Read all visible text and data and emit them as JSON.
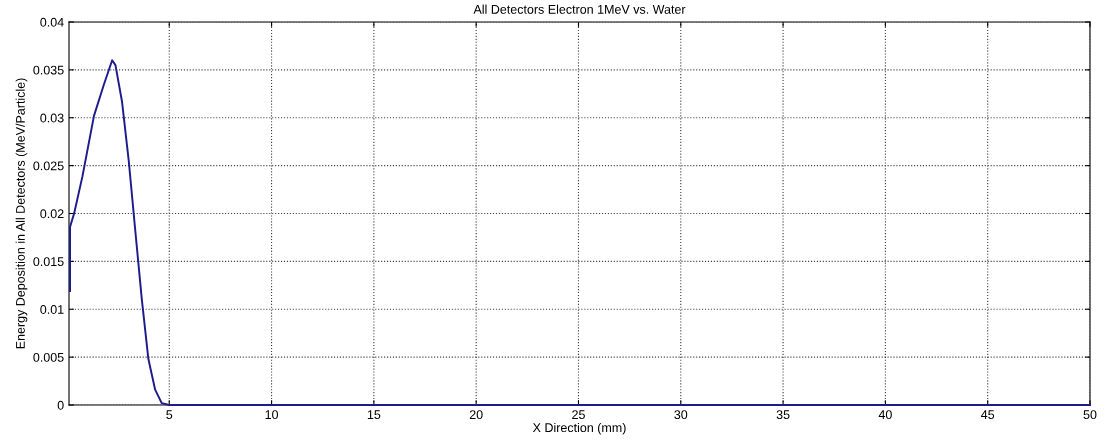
{
  "chart_data": {
    "type": "line",
    "title": "All Detectors Electron 1MeV vs. Water",
    "xlabel": "X Direction (mm)",
    "ylabel": "Energy Deposition in All Detectors (MeV/Particle)",
    "series": [
      {
        "color": "#1c1c8c",
        "x": [
          0.15,
          0.15,
          0.35,
          0.76,
          1.32,
          1.81,
          2.21,
          2.37,
          2.69,
          3.02,
          3.34,
          3.66,
          3.98,
          4.31,
          4.63,
          5,
          10,
          20,
          30,
          40,
          50
        ],
        "values": [
          0.0119,
          0.0186,
          0.02,
          0.0239,
          0.0302,
          0.0335,
          0.036,
          0.0355,
          0.0317,
          0.0255,
          0.0182,
          0.011,
          0.0048,
          0.0016,
          0.0002,
          0,
          0,
          0,
          0,
          0,
          0
        ]
      }
    ],
    "xlim": [
      0.1,
      50
    ],
    "xticks": [
      5,
      10,
      15,
      20,
      25,
      30,
      35,
      40,
      45,
      50
    ],
    "ylim": [
      0,
      0.04
    ],
    "yticks": [
      0,
      0.005,
      0.01,
      0.015,
      0.02,
      0.025,
      0.03,
      0.035,
      0.04
    ],
    "grid": true,
    "line_style": "solid",
    "marker": "none"
  }
}
